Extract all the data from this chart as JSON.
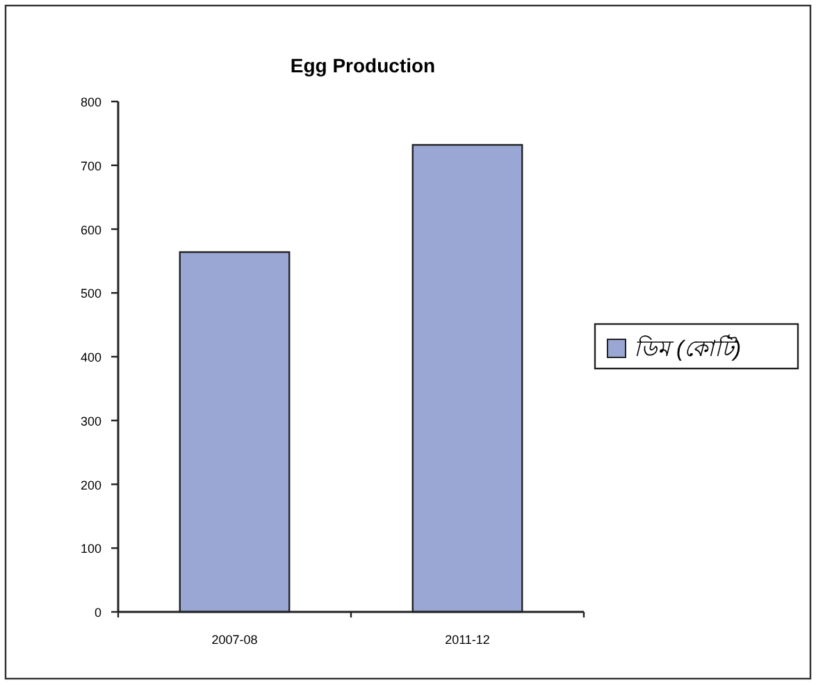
{
  "chart_data": {
    "type": "bar",
    "title": "Egg Production",
    "categories": [
      "2007-08",
      "2011-12"
    ],
    "series": [
      {
        "name": "ডিম (কোটি)",
        "color": "#9aa6d4",
        "values": [
          564,
          732
        ]
      }
    ],
    "ylim": [
      0,
      800
    ],
    "yticks": [
      0,
      100,
      200,
      300,
      400,
      500,
      600,
      700,
      800
    ],
    "grid": false,
    "legend": "right"
  }
}
